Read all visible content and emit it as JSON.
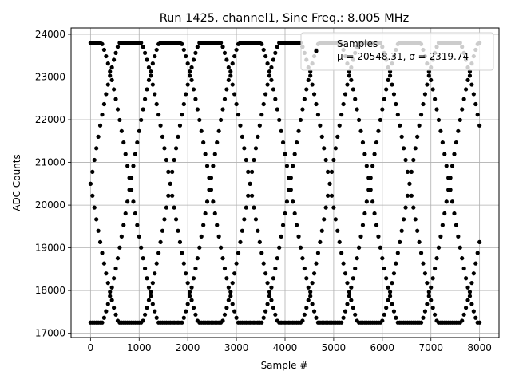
{
  "chart_data": {
    "type": "scatter",
    "title": "Run 1425, channel1, Sine Freq.: 8.005 MHz",
    "xlabel": "Sample #",
    "ylabel": "ADC Counts",
    "xlim": [
      -400,
      8400
    ],
    "ylim": [
      16900,
      24150
    ],
    "xticks": [
      0,
      1000,
      2000,
      3000,
      4000,
      5000,
      6000,
      7000,
      8000
    ],
    "yticks": [
      17000,
      18000,
      19000,
      20000,
      21000,
      22000,
      23000,
      24000
    ],
    "grid": true,
    "legend": {
      "placement": "upper-right",
      "series_label": "Samples",
      "stats_label": "μ = 20548.31, σ = 2319.74"
    },
    "colors": {
      "markers": "#000000",
      "grid": "#b0b0b0"
    },
    "series": [
      {
        "marker": "filled-circle",
        "sample_step": 40,
        "sample_range": [
          0,
          8000
        ],
        "waveform": {
          "description_of_fit": "four interleaved sinusoids sampled every 40 samples, clipped at ADC range",
          "offset": 20500,
          "amplitude": 3650,
          "period_samples": 3280,
          "phases_deg": [
            90,
            270,
            0,
            180
          ],
          "clip_low": 17250,
          "clip_high": 23800
        }
      }
    ]
  }
}
